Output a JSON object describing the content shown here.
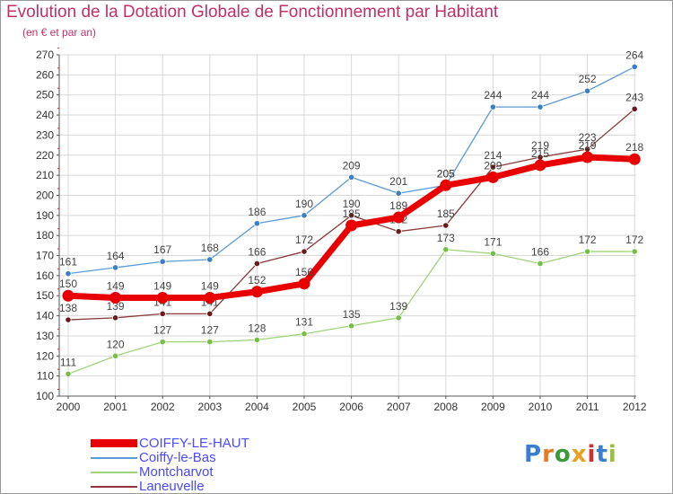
{
  "title": "Evolution de la Dotation Globale de Fonctionnement par Habitant",
  "subtitle": "(en € et par an)",
  "logo_text": "Proxiti",
  "chart_data": {
    "type": "line",
    "x": [
      "2000",
      "2001",
      "2002",
      "2003",
      "2004",
      "2005",
      "2006",
      "2007",
      "2008",
      "2009",
      "2010",
      "2011",
      "2012"
    ],
    "ylim": [
      100,
      270
    ],
    "yticks": [
      100,
      110,
      120,
      130,
      140,
      150,
      160,
      170,
      180,
      190,
      200,
      210,
      220,
      230,
      240,
      250,
      260,
      270
    ],
    "grid": true,
    "legend_position": "bottom-left",
    "series": [
      {
        "name": "Coiffy-le-Bas",
        "color": "#5a9ad6",
        "point": "#3a7fc8",
        "width": 1.3,
        "marker": 3.2,
        "values": [
          161,
          164,
          167,
          168,
          186,
          190,
          209,
          201,
          205,
          244,
          244,
          252,
          264
        ]
      },
      {
        "name": "Montcharvot",
        "color": "#9fd47a",
        "point": "#72c044",
        "width": 1.3,
        "marker": 3.2,
        "values": [
          111,
          120,
          127,
          127,
          128,
          131,
          135,
          139,
          173,
          171,
          166,
          172,
          172
        ]
      },
      {
        "name": "Laneuvelle",
        "color": "#8a3a3a",
        "point": "#6a1a1a",
        "width": 1.3,
        "marker": 3.2,
        "values": [
          138,
          139,
          141,
          141,
          166,
          172,
          190,
          182,
          185,
          214,
          219,
          223,
          243
        ]
      },
      {
        "name": "COIFFY-LE-HAUT",
        "color": "#e80000",
        "point": "#e80000",
        "width": 7,
        "marker": 6.5,
        "values": [
          150,
          149,
          149,
          149,
          152,
          156,
          185,
          189,
          205,
          209,
          215,
          219,
          218
        ]
      }
    ],
    "legend_order": [
      "COIFFY-LE-HAUT",
      "Coiffy-le-Bas",
      "Montcharvot",
      "Laneuvelle"
    ]
  }
}
